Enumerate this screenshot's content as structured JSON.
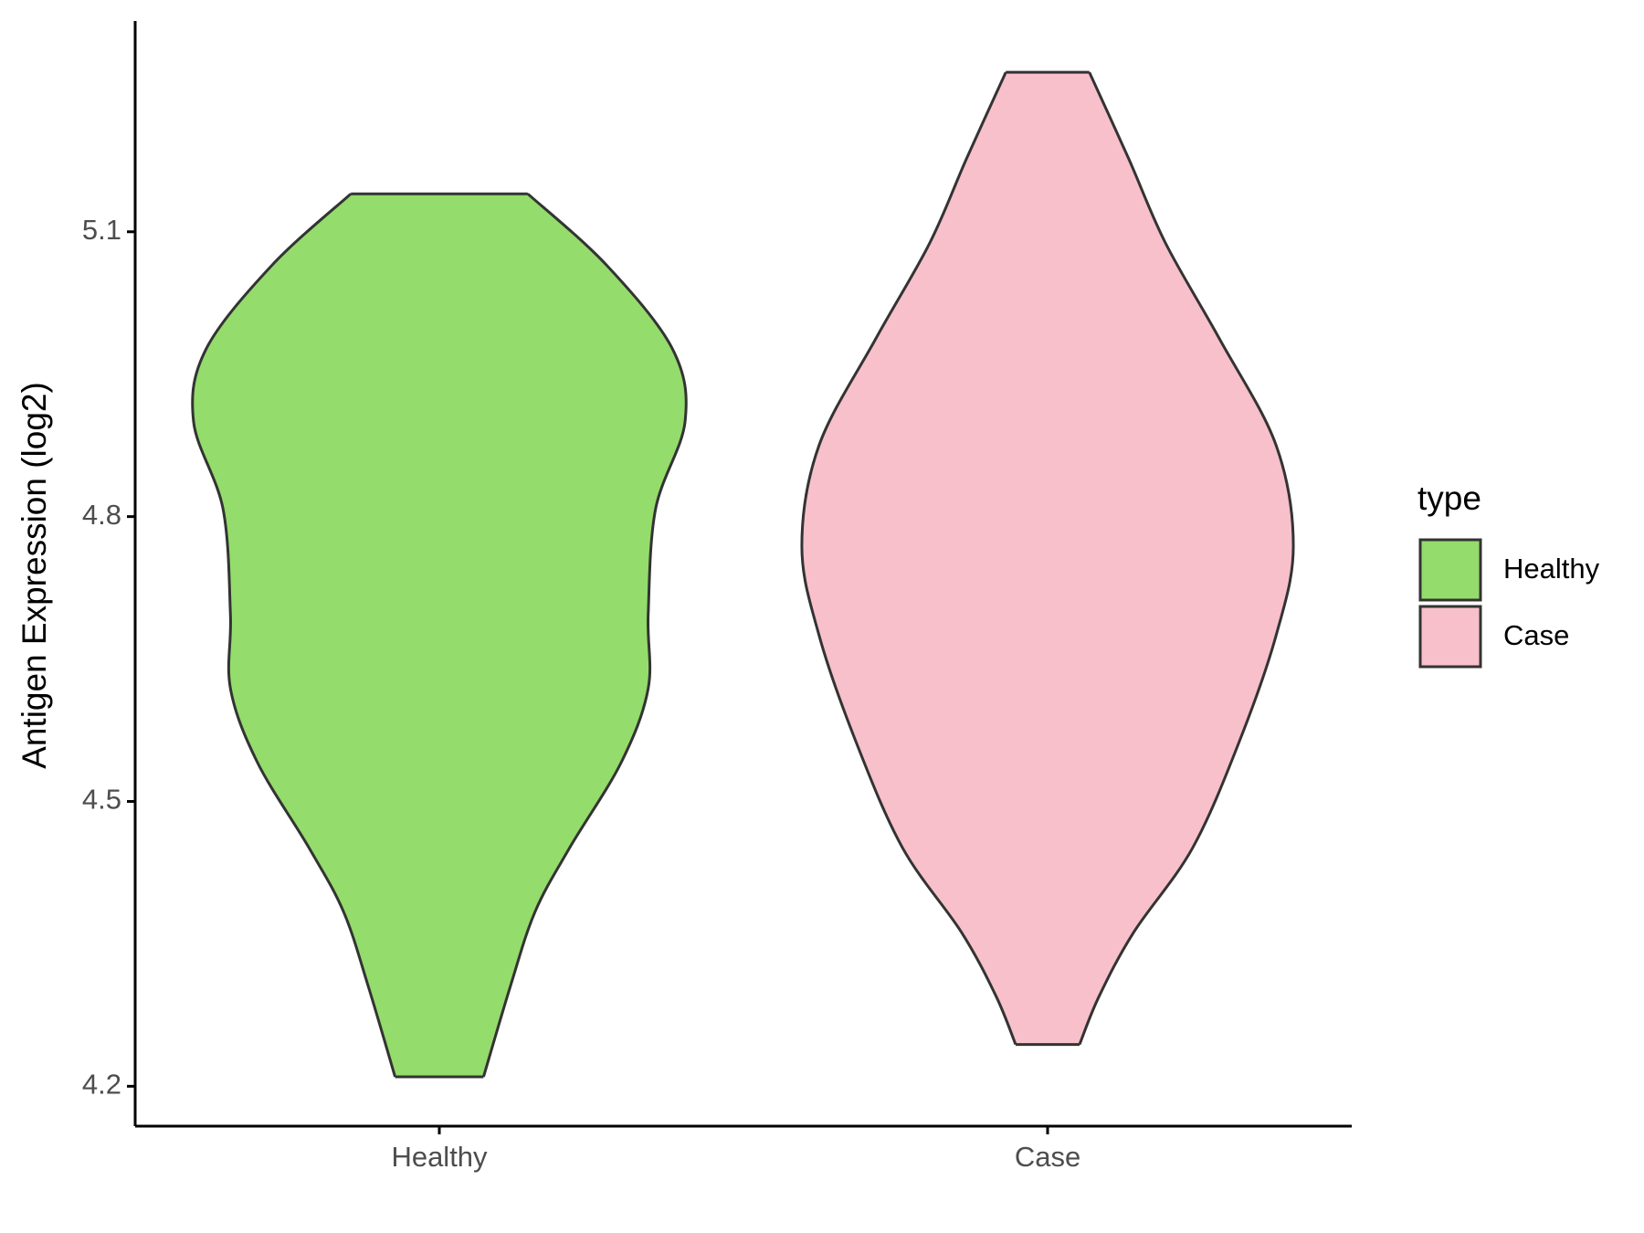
{
  "chart_data": {
    "type": "violin",
    "y_label": "Antigen Expression (log2)",
    "legend_title": "type",
    "legend_position": "right",
    "categories": [
      "Healthy",
      "Case"
    ],
    "ylim": [
      4.158,
      5.322
    ],
    "yticks": [
      4.2,
      4.5,
      4.8,
      5.1
    ],
    "series": [
      {
        "name": "Healthy",
        "color": "#94dc6b",
        "y": [
          5.14,
          5.065,
          4.976,
          4.9,
          4.808,
          4.697,
          4.619,
          4.541,
          4.451,
          4.384,
          4.306,
          4.21
        ],
        "density": [
          0.36,
          0.68,
          0.95,
          1.0,
          0.88,
          0.85,
          0.85,
          0.74,
          0.53,
          0.39,
          0.29,
          0.18
        ]
      },
      {
        "name": "Case",
        "color": "#f7c0cb",
        "y": [
          5.268,
          5.177,
          5.088,
          4.987,
          4.875,
          4.769,
          4.675,
          4.563,
          4.451,
          4.362,
          4.295,
          4.244
        ],
        "density": [
          0.17,
          0.33,
          0.48,
          0.7,
          0.93,
          1.0,
          0.93,
          0.78,
          0.59,
          0.35,
          0.21,
          0.13
        ]
      }
    ]
  }
}
